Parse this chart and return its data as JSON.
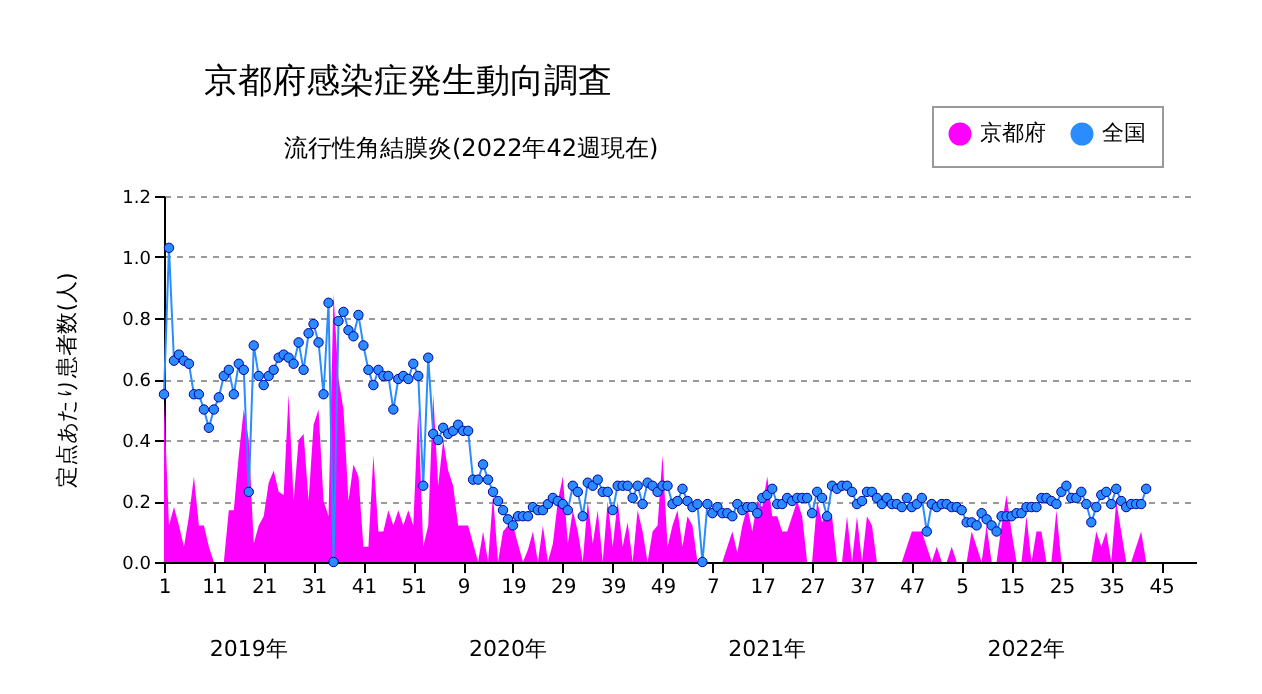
{
  "chart_data": {
    "type": "area",
    "title": "京都府感染症発生動向調査",
    "subtitle": "流行性角結膜炎(2022年42週現在)",
    "ylabel": "定点あたり患者数(人)",
    "categories": [
      "1",
      null,
      null,
      null,
      null,
      null,
      null,
      null,
      null,
      null,
      "11",
      null,
      null,
      null,
      null,
      null,
      null,
      null,
      null,
      null,
      "21",
      null,
      null,
      null,
      null,
      null,
      null,
      null,
      null,
      null,
      "31",
      null,
      null,
      null,
      null,
      null,
      null,
      null,
      null,
      null,
      "41",
      null,
      null,
      null,
      null,
      null,
      null,
      null,
      null,
      null,
      "51",
      null,
      null,
      null,
      null,
      null,
      null,
      null,
      null,
      null,
      "9",
      null,
      null,
      null,
      null,
      null,
      null,
      null,
      null,
      null,
      "19",
      null,
      null,
      null,
      null,
      null,
      null,
      null,
      null,
      null,
      "29",
      null,
      null,
      null,
      null,
      null,
      null,
      null,
      null,
      null,
      "39",
      null,
      null,
      null,
      null,
      null,
      null,
      null,
      null,
      null,
      "49",
      null,
      null,
      null,
      null,
      null,
      null,
      null,
      null,
      null,
      "7",
      null,
      null,
      null,
      null,
      null,
      null,
      null,
      null,
      null,
      "17",
      null,
      null,
      null,
      null,
      null,
      null,
      null,
      null,
      null,
      "27",
      null,
      null,
      null,
      null,
      null,
      null,
      null,
      null,
      null,
      "37",
      null,
      null,
      null,
      null,
      null,
      null,
      null,
      null,
      null,
      "47",
      null,
      null,
      null,
      null,
      null,
      null,
      null,
      null,
      null,
      "5",
      null,
      null,
      null,
      null,
      null,
      null,
      null,
      null,
      null,
      "15",
      null,
      null,
      null,
      null,
      null,
      null,
      null,
      null,
      null,
      "25",
      null,
      null,
      null,
      null,
      null,
      null,
      null,
      null,
      null,
      "35",
      null,
      null,
      null,
      null,
      null,
      null,
      null,
      null,
      null,
      "45",
      null,
      null,
      null,
      null,
      null,
      null,
      null
    ],
    "series": [
      {
        "name": "京都府",
        "color": "#ff00ff",
        "values": [
          0.53,
          0.12,
          0.18,
          0.12,
          0.05,
          0.15,
          0.28,
          0.12,
          0.12,
          0.05,
          0,
          0,
          0,
          0.17,
          0.17,
          0.35,
          0.5,
          0.4,
          0.06,
          0.12,
          0.15,
          0.26,
          0.3,
          0.23,
          0.22,
          0.55,
          0.2,
          0.4,
          0.42,
          0.2,
          0.45,
          0.5,
          0.2,
          0.15,
          0.88,
          0.6,
          0.5,
          0.2,
          0.32,
          0.28,
          0.05,
          0.05,
          0.35,
          0.1,
          0.1,
          0.17,
          0.12,
          0.17,
          0.12,
          0.17,
          0.12,
          0.5,
          0.05,
          0.12,
          0.55,
          0.25,
          0.4,
          0.3,
          0.25,
          0.12,
          0.12,
          0.12,
          0.06,
          0,
          0.1,
          0,
          0.22,
          0,
          0.1,
          0.12,
          0.12,
          0.06,
          0,
          0.04,
          0.1,
          0,
          0.12,
          0,
          0.06,
          0.2,
          0.28,
          0.06,
          0.17,
          0.1,
          0,
          0.2,
          0.06,
          0.17,
          0,
          0.2,
          0.05,
          0.2,
          0.05,
          0.13,
          0,
          0.17,
          0.1,
          0,
          0.1,
          0.12,
          0.35,
          0.05,
          0.12,
          0.17,
          0.05,
          0.15,
          0.12,
          0,
          0,
          0,
          0,
          0,
          0,
          0.05,
          0.1,
          0.03,
          0.12,
          0.18,
          0.1,
          0.2,
          0.18,
          0.28,
          0.15,
          0.15,
          0.1,
          0.1,
          0.15,
          0.2,
          0.15,
          0,
          0,
          0.2,
          0.13,
          0.17,
          0.15,
          0,
          0,
          0.15,
          0,
          0.15,
          0,
          0.15,
          0.12,
          0,
          0,
          0,
          0,
          0,
          0,
          0.05,
          0.1,
          0.1,
          0.1,
          0.05,
          0,
          0.05,
          0,
          0,
          0.05,
          0,
          0,
          0,
          0.1,
          0.05,
          0,
          0.12,
          0,
          0,
          0.12,
          0.22,
          0.1,
          0,
          0,
          0.15,
          0,
          0.1,
          0.1,
          0,
          0,
          0.17,
          0,
          0,
          0,
          0,
          0,
          0,
          0,
          0.1,
          0.05,
          0.1,
          0,
          0.2,
          0.1,
          0,
          0,
          0.05,
          0.1,
          0,
          null,
          null,
          null,
          null,
          null,
          null,
          null,
          null,
          null,
          null
        ]
      },
      {
        "name": "全国",
        "type": "line",
        "marker": "circle",
        "color": "#2a8cff",
        "values": [
          0.55,
          1.03,
          0.66,
          0.68,
          0.66,
          0.65,
          0.55,
          0.55,
          0.5,
          0.44,
          0.5,
          0.54,
          0.61,
          0.63,
          0.55,
          0.65,
          0.63,
          0.23,
          0.71,
          0.61,
          0.58,
          0.61,
          0.63,
          0.67,
          0.68,
          0.67,
          0.65,
          0.72,
          0.63,
          0.75,
          0.78,
          0.72,
          0.55,
          0.85,
          0,
          0.79,
          0.82,
          0.76,
          0.74,
          0.81,
          0.71,
          0.63,
          0.58,
          0.63,
          0.61,
          0.61,
          0.5,
          0.6,
          0.61,
          0.6,
          0.65,
          0.61,
          0.25,
          0.67,
          0.42,
          0.4,
          0.44,
          0.42,
          0.43,
          0.45,
          0.43,
          0.43,
          0.27,
          0.27,
          0.32,
          0.27,
          0.23,
          0.2,
          0.17,
          0.14,
          0.12,
          0.15,
          0.15,
          0.15,
          0.18,
          0.17,
          0.17,
          0.19,
          0.21,
          0.2,
          0.19,
          0.17,
          0.25,
          0.23,
          0.15,
          0.26,
          0.25,
          0.27,
          0.23,
          0.23,
          0.17,
          0.25,
          0.25,
          0.25,
          0.21,
          0.25,
          0.19,
          0.26,
          0.25,
          0.23,
          0.25,
          0.25,
          0.19,
          0.2,
          0.24,
          0.2,
          0.18,
          0.19,
          0,
          0.19,
          0.16,
          0.18,
          0.16,
          0.16,
          0.15,
          0.19,
          0.17,
          0.18,
          0.18,
          0.16,
          0.21,
          0.22,
          0.24,
          0.19,
          0.19,
          0.21,
          0.2,
          0.21,
          0.21,
          0.21,
          0.16,
          0.23,
          0.21,
          0.15,
          0.25,
          0.24,
          0.25,
          0.25,
          0.23,
          0.19,
          0.2,
          0.23,
          0.23,
          0.21,
          0.19,
          0.21,
          0.19,
          0.19,
          0.18,
          0.21,
          0.18,
          0.19,
          0.21,
          0.1,
          0.19,
          0.18,
          0.19,
          0.19,
          0.18,
          0.18,
          0.17,
          0.13,
          0.13,
          0.12,
          0.16,
          0.14,
          0.12,
          0.1,
          0.15,
          0.15,
          0.15,
          0.16,
          0.16,
          0.18,
          0.18,
          0.18,
          0.21,
          0.21,
          0.2,
          0.19,
          0.23,
          0.25,
          0.21,
          0.21,
          0.23,
          0.19,
          0.13,
          0.18,
          0.22,
          0.23,
          0.19,
          0.24,
          0.2,
          0.18,
          0.19,
          0.19,
          0.19,
          0.24,
          null,
          null,
          null,
          null,
          null,
          null,
          null,
          null,
          null,
          null
        ]
      }
    ],
    "ylim": [
      0,
      1.2
    ],
    "yticks": [
      {
        "value": 0,
        "label": "0.0"
      },
      {
        "value": 0.2,
        "label": "0.2"
      },
      {
        "value": 0.4,
        "label": "0.4"
      },
      {
        "value": 0.6,
        "label": "0.6"
      },
      {
        "value": 0.8,
        "label": "0.8"
      },
      {
        "value": 1,
        "label": "1.0"
      },
      {
        "value": 1.2,
        "label": "1.2"
      }
    ],
    "grid": "y",
    "legend": "top right",
    "annotations": [
      "2019年",
      "2020年",
      "2021年",
      "2022年"
    ]
  }
}
